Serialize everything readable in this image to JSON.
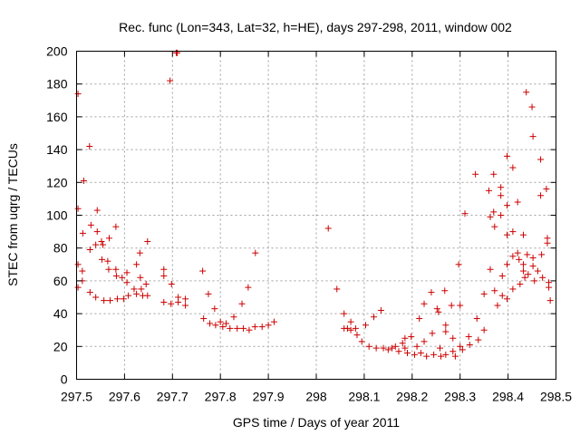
{
  "chart_data": {
    "type": "scatter",
    "title": "Rec. func (Lon=343, Lat=32, h=HE), days 297-298, 2011, window 002",
    "xlabel": "GPS time / Days of year 2011",
    "ylabel": "STEC from uqrg / TECUs",
    "xlim": [
      297.5,
      298.5
    ],
    "ylim": [
      0,
      200
    ],
    "x_ticks": [
      297.5,
      297.6,
      297.7,
      297.8,
      297.9,
      298,
      298.1,
      298.2,
      298.3,
      298.4,
      298.5
    ],
    "x_tick_labels": [
      "297.5",
      "297.6",
      "297.7",
      "297.8",
      "297.9",
      "298",
      "298.1",
      "298.2",
      "298.3",
      "298.4",
      "298.5"
    ],
    "y_ticks": [
      0,
      20,
      40,
      60,
      80,
      100,
      120,
      140,
      160,
      180,
      200
    ],
    "y_tick_labels": [
      "0",
      "20",
      "40",
      "60",
      "80",
      "100",
      "120",
      "140",
      "160",
      "180",
      "200"
    ],
    "grid": true,
    "marker": "+",
    "color": "#cc0000",
    "series": [
      {
        "points": [
          [
            297.503,
            174
          ],
          [
            297.503,
            104
          ],
          [
            297.503,
            70
          ],
          [
            297.503,
            56
          ],
          [
            297.515,
            121
          ],
          [
            297.513,
            89
          ],
          [
            297.512,
            66
          ],
          [
            297.512,
            60
          ],
          [
            297.527,
            142
          ],
          [
            297.53,
            94
          ],
          [
            297.528,
            79
          ],
          [
            297.528,
            53
          ],
          [
            297.543,
            103
          ],
          [
            297.543,
            90
          ],
          [
            297.54,
            82
          ],
          [
            297.54,
            50
          ],
          [
            297.552,
            84
          ],
          [
            297.555,
            82
          ],
          [
            297.553,
            73
          ],
          [
            297.557,
            48
          ],
          [
            297.568,
            86
          ],
          [
            297.565,
            72
          ],
          [
            297.567,
            67
          ],
          [
            297.57,
            48
          ],
          [
            297.582,
            93
          ],
          [
            297.582,
            67
          ],
          [
            297.583,
            63
          ],
          [
            297.585,
            49
          ],
          [
            297.595,
            62
          ],
          [
            297.598,
            49
          ],
          [
            297.605,
            65
          ],
          [
            297.605,
            59
          ],
          [
            297.608,
            51
          ],
          [
            297.625,
            70
          ],
          [
            297.625,
            52
          ],
          [
            297.62,
            55
          ],
          [
            297.632,
            77
          ],
          [
            297.633,
            62
          ],
          [
            297.635,
            55
          ],
          [
            297.638,
            51
          ],
          [
            297.648,
            84
          ],
          [
            297.645,
            58
          ],
          [
            297.648,
            51
          ],
          [
            297.682,
            67
          ],
          [
            297.682,
            63
          ],
          [
            297.682,
            47
          ],
          [
            297.695,
            182
          ],
          [
            297.698,
            58
          ],
          [
            297.697,
            46
          ],
          [
            297.708,
            199
          ],
          [
            297.712,
            50
          ],
          [
            297.712,
            47
          ],
          [
            297.71,
            199
          ],
          [
            297.727,
            49
          ],
          [
            297.727,
            45
          ],
          [
            297.763,
            66
          ],
          [
            297.765,
            37
          ],
          [
            297.775,
            52
          ],
          [
            297.778,
            34
          ],
          [
            297.788,
            43
          ],
          [
            297.79,
            33
          ],
          [
            297.8,
            35
          ],
          [
            297.805,
            32
          ],
          [
            297.812,
            34
          ],
          [
            297.82,
            31
          ],
          [
            297.828,
            38
          ],
          [
            297.835,
            31
          ],
          [
            297.845,
            46
          ],
          [
            297.848,
            31
          ],
          [
            297.858,
            56
          ],
          [
            297.86,
            30
          ],
          [
            297.873,
            77
          ],
          [
            297.872,
            32
          ],
          [
            297.887,
            32
          ],
          [
            297.9,
            33
          ],
          [
            297.912,
            35
          ],
          [
            298.025,
            92
          ],
          [
            298.043,
            55
          ],
          [
            298.058,
            40
          ],
          [
            298.058,
            31
          ],
          [
            298.065,
            31
          ],
          [
            298.072,
            35
          ],
          [
            298.072,
            30
          ],
          [
            298.082,
            31
          ],
          [
            298.085,
            27
          ],
          [
            298.095,
            23
          ],
          [
            298.103,
            33
          ],
          [
            298.11,
            20
          ],
          [
            298.12,
            38
          ],
          [
            298.125,
            19
          ],
          [
            298.135,
            42
          ],
          [
            298.14,
            19
          ],
          [
            298.15,
            18
          ],
          [
            298.158,
            19
          ],
          [
            298.165,
            20
          ],
          [
            298.172,
            17
          ],
          [
            298.18,
            22
          ],
          [
            298.185,
            25
          ],
          [
            298.185,
            19
          ],
          [
            298.19,
            16
          ],
          [
            298.198,
            26
          ],
          [
            298.205,
            15
          ],
          [
            298.21,
            20
          ],
          [
            298.215,
            37
          ],
          [
            298.218,
            16
          ],
          [
            298.225,
            46
          ],
          [
            298.225,
            23
          ],
          [
            298.23,
            14
          ],
          [
            298.24,
            53
          ],
          [
            298.242,
            28
          ],
          [
            298.245,
            15
          ],
          [
            298.252,
            43
          ],
          [
            298.255,
            41
          ],
          [
            298.258,
            19
          ],
          [
            298.26,
            14
          ],
          [
            298.268,
            54
          ],
          [
            298.27,
            33
          ],
          [
            298.27,
            29
          ],
          [
            298.27,
            15
          ],
          [
            298.282,
            45
          ],
          [
            298.285,
            25
          ],
          [
            298.285,
            17
          ],
          [
            298.29,
            14
          ],
          [
            298.297,
            70
          ],
          [
            298.3,
            45
          ],
          [
            298.3,
            20
          ],
          [
            298.305,
            18
          ],
          [
            298.31,
            101
          ],
          [
            298.318,
            26
          ],
          [
            298.32,
            21
          ],
          [
            298.332,
            125
          ],
          [
            298.335,
            37
          ],
          [
            298.338,
            24
          ],
          [
            298.35,
            52
          ],
          [
            298.35,
            30
          ],
          [
            298.36,
            115
          ],
          [
            298.363,
            99
          ],
          [
            298.363,
            67
          ],
          [
            298.37,
            125
          ],
          [
            298.37,
            102
          ],
          [
            298.372,
            93
          ],
          [
            298.372,
            54
          ],
          [
            298.378,
            45
          ],
          [
            298.385,
            117
          ],
          [
            298.385,
            112
          ],
          [
            298.385,
            100
          ],
          [
            298.388,
            63
          ],
          [
            298.388,
            51
          ],
          [
            298.398,
            136
          ],
          [
            298.398,
            106
          ],
          [
            298.398,
            88
          ],
          [
            298.398,
            70
          ],
          [
            298.398,
            49
          ],
          [
            298.41,
            129
          ],
          [
            298.41,
            90
          ],
          [
            298.41,
            75
          ],
          [
            298.41,
            55
          ],
          [
            298.42,
            108
          ],
          [
            298.42,
            77
          ],
          [
            298.423,
            73
          ],
          [
            298.425,
            58
          ],
          [
            298.432,
            88
          ],
          [
            298.432,
            70
          ],
          [
            298.432,
            66
          ],
          [
            298.435,
            62
          ],
          [
            298.438,
            175
          ],
          [
            298.44,
            76
          ],
          [
            298.442,
            64
          ],
          [
            298.45,
            166
          ],
          [
            298.452,
            148
          ],
          [
            298.452,
            74
          ],
          [
            298.452,
            69
          ],
          [
            298.455,
            60
          ],
          [
            298.462,
            66
          ],
          [
            298.468,
            134
          ],
          [
            298.468,
            112
          ],
          [
            298.47,
            76
          ],
          [
            298.472,
            62
          ],
          [
            298.48,
            116
          ],
          [
            298.482,
            86
          ],
          [
            298.482,
            83
          ],
          [
            298.485,
            59
          ],
          [
            298.485,
            56
          ],
          [
            298.488,
            48
          ]
        ]
      }
    ]
  }
}
